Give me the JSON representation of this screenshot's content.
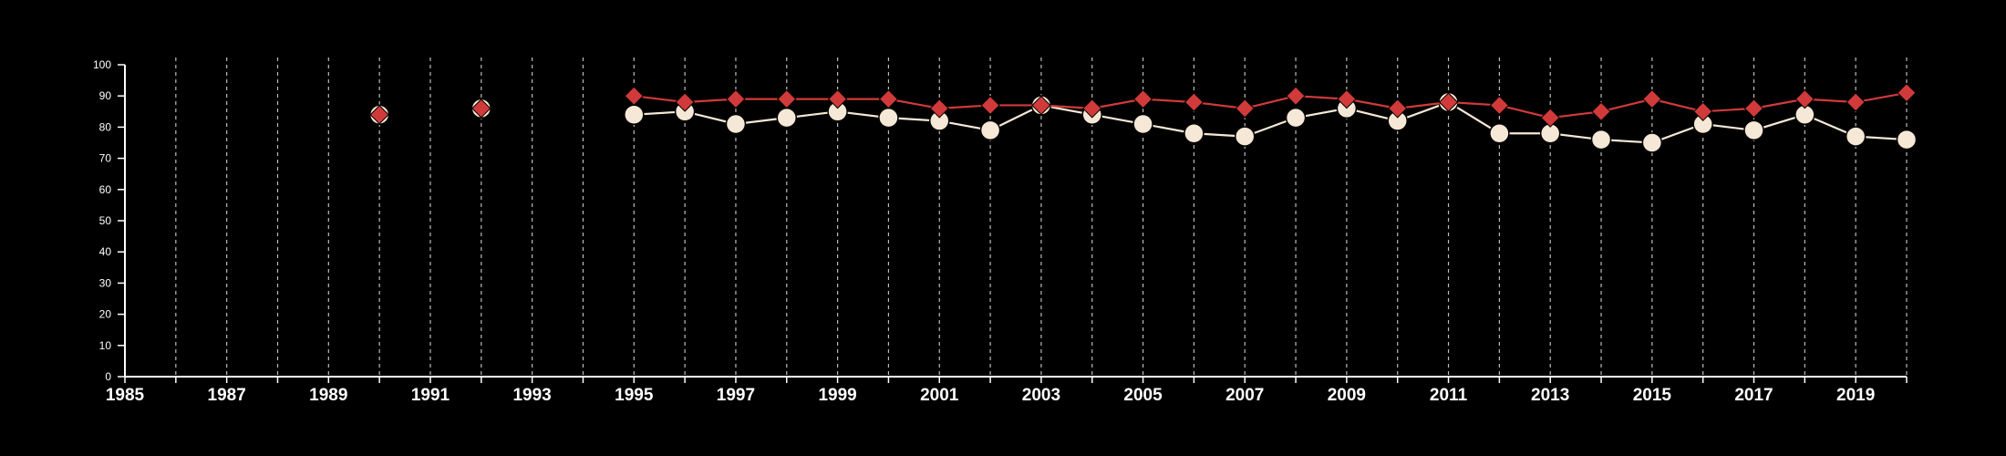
{
  "chart_data": {
    "type": "line",
    "xlim": [
      1985,
      2020
    ],
    "ylim": [
      0,
      100
    ],
    "x_ticks": [
      1985,
      1987,
      1989,
      1991,
      1993,
      1995,
      1997,
      1999,
      2001,
      2003,
      2005,
      2007,
      2009,
      2011,
      2013,
      2015,
      2017,
      2019
    ],
    "y_ticks": [
      0,
      10,
      20,
      30,
      40,
      50,
      60,
      70,
      80,
      90,
      100
    ],
    "grid": "vertical dashed lines at each year",
    "colors": {
      "background": "#000000",
      "axis": "#ffffff",
      "grid": "#bbbbbb",
      "series_circle": "#f6e8d6",
      "series_diamond": "#d13a3a"
    },
    "series": [
      {
        "marker": "circle",
        "color": "#f6e8d6",
        "points": [
          [
            1995,
            84
          ],
          [
            1996,
            85
          ],
          [
            1997,
            81
          ],
          [
            1998,
            83
          ],
          [
            1999,
            85
          ],
          [
            2000,
            83
          ],
          [
            2001,
            82
          ],
          [
            2002,
            79
          ],
          [
            2003,
            87
          ],
          [
            2004,
            84
          ],
          [
            2005,
            81
          ],
          [
            2006,
            78
          ],
          [
            2007,
            77
          ],
          [
            2008,
            83
          ],
          [
            2009,
            86
          ],
          [
            2010,
            82
          ],
          [
            2011,
            88
          ],
          [
            2012,
            78
          ],
          [
            2013,
            78
          ],
          [
            2014,
            76
          ],
          [
            2015,
            75
          ],
          [
            2016,
            81
          ],
          [
            2017,
            79
          ],
          [
            2018,
            84
          ],
          [
            2019,
            77
          ],
          [
            2020,
            76
          ]
        ],
        "isolated_points": [
          [
            1990,
            84
          ],
          [
            1992,
            86
          ]
        ]
      },
      {
        "marker": "diamond",
        "color": "#d13a3a",
        "points": [
          [
            1995,
            90
          ],
          [
            1996,
            88
          ],
          [
            1997,
            89
          ],
          [
            1998,
            89
          ],
          [
            1999,
            89
          ],
          [
            2000,
            89
          ],
          [
            2001,
            86
          ],
          [
            2002,
            87
          ],
          [
            2003,
            87
          ],
          [
            2004,
            86
          ],
          [
            2005,
            89
          ],
          [
            2006,
            88
          ],
          [
            2007,
            86
          ],
          [
            2008,
            90
          ],
          [
            2009,
            89
          ],
          [
            2010,
            86
          ],
          [
            2011,
            88
          ],
          [
            2012,
            87
          ],
          [
            2013,
            83
          ],
          [
            2014,
            85
          ],
          [
            2015,
            89
          ],
          [
            2016,
            85
          ],
          [
            2017,
            86
          ],
          [
            2018,
            89
          ],
          [
            2019,
            88
          ],
          [
            2020,
            91
          ]
        ],
        "isolated_points": [
          [
            1990,
            84
          ],
          [
            1992,
            86
          ]
        ]
      }
    ]
  }
}
